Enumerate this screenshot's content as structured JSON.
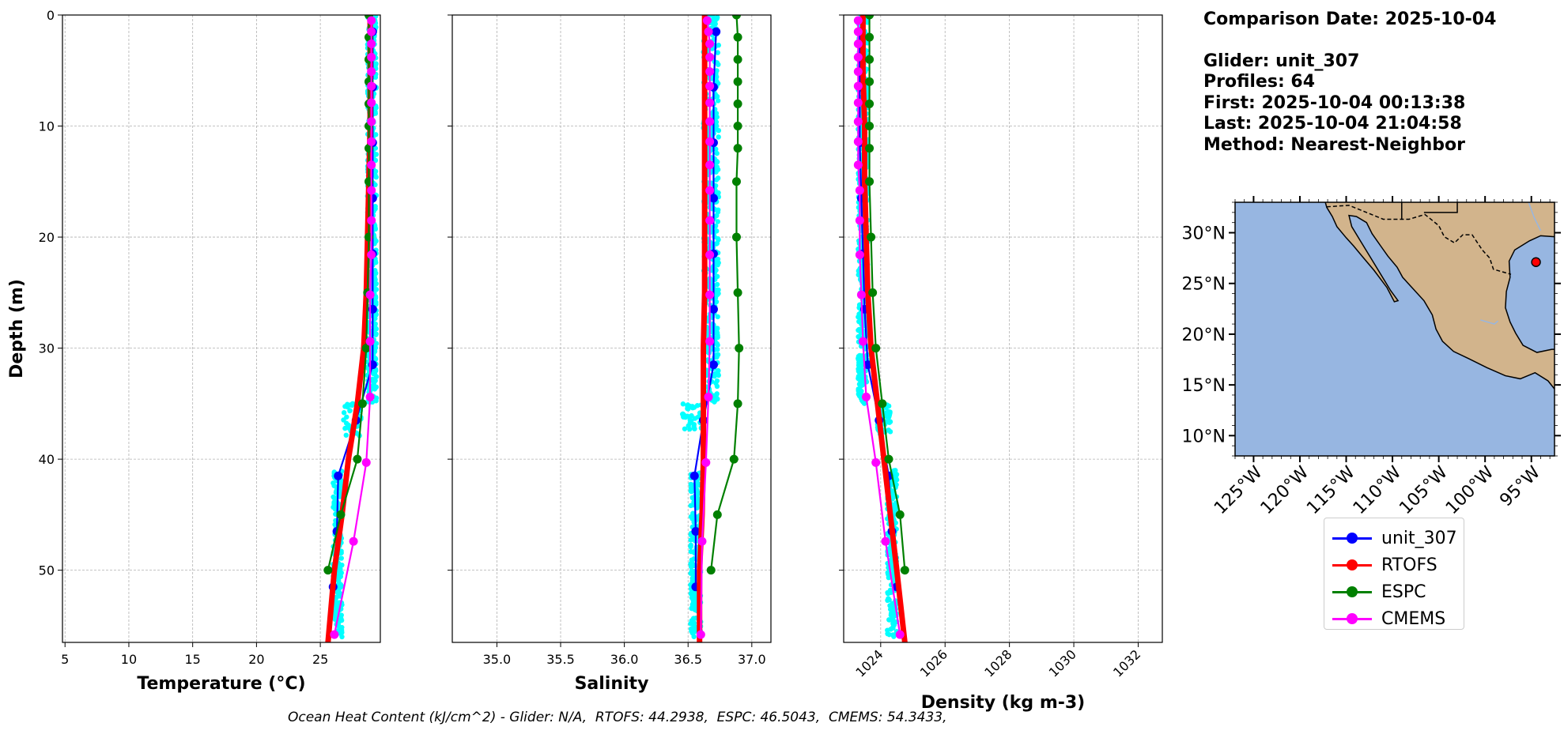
{
  "info": {
    "comparison_date": "Comparison Date: 2025-10-04",
    "glider": "Glider: unit_307",
    "profiles": "Profiles: 64",
    "first": "First: 2025-10-04 00:13:38",
    "last": "Last: 2025-10-04 21:04:58",
    "method": "Method: Nearest-Neighbor"
  },
  "footer": "Ocean Heat Content (kJ/cm^2) - Glider: N/A,  RTOFS: 44.2938,  ESPC: 46.5043,  CMEMS: 54.3433,",
  "legend": [
    {
      "name": "unit_307",
      "color": "#0000ff"
    },
    {
      "name": "RTOFS",
      "color": "#ff0000"
    },
    {
      "name": "ESPC",
      "color": "#008000"
    },
    {
      "name": "CMEMS",
      "color": "#ff00ff"
    }
  ],
  "colors": {
    "glider_scatter": "#00ffff",
    "unit_307": "#0000ff",
    "RTOFS": "#ff0000",
    "ESPC": "#008000",
    "CMEMS": "#ff00ff",
    "ocean": "#97b6e1",
    "land": "#d2b48c",
    "grid": "#b0b0b0"
  },
  "chart_data": [
    {
      "type": "line",
      "xlabel": "Temperature (°C)",
      "ylabel": "Depth (m)",
      "xlim": [
        4.8,
        29.7
      ],
      "ylim": [
        56.5,
        0
      ],
      "xticks": [
        5,
        10,
        15,
        20,
        25
      ],
      "yticks": [
        0,
        10,
        20,
        30,
        40,
        50
      ],
      "grid": true,
      "scatter_x_range": {
        "0-35": [
          28.7,
          29.4
        ],
        "35-38": [
          26.8,
          28.2
        ],
        "41-56": [
          26.0,
          26.7
        ]
      },
      "series": [
        {
          "name": "unit_307",
          "depth": [
            1.5,
            6.5,
            11.5,
            16.5,
            21.5,
            26.5,
            31.5,
            36.5,
            41.5,
            46.5,
            51.5
          ],
          "values": [
            29.1,
            29.1,
            29.1,
            29.1,
            29.1,
            29.1,
            29.1,
            27.8,
            26.4,
            26.3,
            26.0
          ]
        },
        {
          "name": "RTOFS",
          "depth": [
            0,
            2,
            4,
            6,
            8,
            10,
            15,
            20,
            25,
            30,
            35,
            40,
            45,
            50,
            56.5
          ],
          "values": [
            28.9,
            28.9,
            28.9,
            28.9,
            28.9,
            28.9,
            28.8,
            28.7,
            28.6,
            28.4,
            27.9,
            27.2,
            26.7,
            26.1,
            25.6
          ]
        },
        {
          "name": "ESPC",
          "depth": [
            0,
            2,
            4,
            6,
            8,
            10,
            12,
            15,
            20,
            25,
            30,
            35,
            40,
            45,
            50
          ],
          "values": [
            28.8,
            28.8,
            28.8,
            28.8,
            28.8,
            28.8,
            28.8,
            28.8,
            28.8,
            28.7,
            28.6,
            28.3,
            27.9,
            26.6,
            25.6
          ]
        },
        {
          "name": "CMEMS",
          "depth": [
            0.5,
            1.5,
            2.6,
            3.8,
            5.1,
            6.4,
            7.9,
            9.6,
            11.4,
            13.5,
            15.8,
            18.5,
            21.6,
            25.2,
            29.4,
            34.4,
            40.3,
            47.4,
            55.8
          ],
          "values": [
            29.0,
            29.0,
            29.0,
            29.0,
            29.0,
            29.0,
            29.0,
            29.0,
            29.0,
            29.0,
            29.0,
            29.0,
            29.0,
            28.9,
            28.9,
            28.9,
            28.6,
            27.6,
            26.1
          ]
        }
      ]
    },
    {
      "type": "line",
      "xlabel": "Salinity",
      "ylabel": "",
      "xlim": [
        34.65,
        37.15
      ],
      "ylim": [
        56.5,
        0
      ],
      "xticks": [
        35.0,
        35.5,
        36.0,
        36.5,
        37.0
      ],
      "grid": true,
      "scatter_x_range": {
        "0-35": [
          36.62,
          36.74
        ],
        "35-38": [
          36.45,
          36.62
        ],
        "41-56": [
          36.52,
          36.6
        ]
      },
      "series": [
        {
          "name": "unit_307",
          "depth": [
            1.5,
            6.5,
            11.5,
            16.5,
            21.5,
            26.5,
            31.5,
            36.5,
            41.5,
            46.5,
            51.5
          ],
          "values": [
            36.72,
            36.7,
            36.7,
            36.7,
            36.7,
            36.7,
            36.7,
            36.62,
            36.55,
            36.56,
            36.56
          ]
        },
        {
          "name": "RTOFS",
          "depth": [
            0,
            5,
            10,
            15,
            20,
            25,
            30,
            35,
            40,
            45,
            50,
            56.5
          ],
          "values": [
            36.63,
            36.63,
            36.63,
            36.63,
            36.63,
            36.63,
            36.62,
            36.62,
            36.62,
            36.61,
            36.59,
            36.59
          ]
        },
        {
          "name": "ESPC",
          "depth": [
            0,
            2,
            4,
            6,
            8,
            10,
            12,
            15,
            20,
            25,
            30,
            35,
            40,
            45,
            50
          ],
          "values": [
            36.88,
            36.89,
            36.89,
            36.89,
            36.89,
            36.89,
            36.89,
            36.88,
            36.88,
            36.89,
            36.9,
            36.89,
            36.86,
            36.73,
            36.68
          ]
        },
        {
          "name": "CMEMS",
          "depth": [
            0.5,
            1.5,
            2.6,
            3.8,
            5.1,
            6.4,
            7.9,
            9.6,
            11.4,
            13.5,
            15.8,
            18.5,
            21.6,
            25.2,
            29.4,
            34.4,
            40.3,
            47.4,
            55.8
          ],
          "values": [
            36.65,
            36.66,
            36.67,
            36.67,
            36.67,
            36.67,
            36.67,
            36.67,
            36.67,
            36.67,
            36.67,
            36.67,
            36.67,
            36.67,
            36.67,
            36.66,
            36.64,
            36.61,
            36.6
          ]
        }
      ]
    },
    {
      "type": "line",
      "xlabel": "Density (kg m-3)",
      "ylabel": "",
      "xlim": [
        1022.85,
        1032.75
      ],
      "ylim": [
        56.5,
        0
      ],
      "xticks": [
        1024,
        1026,
        1028,
        1030,
        1032
      ],
      "grid": true,
      "scatter_x_range": {
        "0-35": [
          1023.3,
          1023.6
        ],
        "35-38": [
          1023.9,
          1024.3
        ],
        "41-56": [
          1024.2,
          1024.5
        ]
      },
      "series": [
        {
          "name": "unit_307",
          "depth": [
            1.5,
            6.5,
            11.5,
            16.5,
            21.5,
            26.5,
            31.5,
            36.5,
            41.5,
            46.5,
            51.5
          ],
          "values": [
            1023.35,
            1023.35,
            1023.35,
            1023.4,
            1023.45,
            1023.5,
            1023.6,
            1023.95,
            1024.25,
            1024.35,
            1024.5
          ]
        },
        {
          "name": "RTOFS",
          "depth": [
            0,
            5,
            10,
            15,
            20,
            25,
            30,
            35,
            40,
            45,
            50,
            56.5
          ],
          "values": [
            1023.45,
            1023.45,
            1023.5,
            1023.5,
            1023.55,
            1023.6,
            1023.7,
            1023.9,
            1024.1,
            1024.3,
            1024.5,
            1024.75
          ]
        },
        {
          "name": "ESPC",
          "depth": [
            0,
            2,
            4,
            6,
            8,
            10,
            12,
            15,
            20,
            25,
            30,
            35,
            40,
            45,
            50
          ],
          "values": [
            1023.65,
            1023.65,
            1023.65,
            1023.65,
            1023.65,
            1023.65,
            1023.65,
            1023.65,
            1023.7,
            1023.75,
            1023.85,
            1024.05,
            1024.25,
            1024.6,
            1024.75
          ]
        },
        {
          "name": "CMEMS",
          "depth": [
            0.5,
            1.5,
            2.6,
            3.8,
            5.1,
            6.4,
            7.9,
            9.6,
            11.4,
            13.5,
            15.8,
            18.5,
            21.6,
            25.2,
            29.4,
            34.4,
            40.3,
            47.4,
            55.8
          ],
          "values": [
            1023.3,
            1023.3,
            1023.3,
            1023.3,
            1023.3,
            1023.3,
            1023.3,
            1023.3,
            1023.3,
            1023.3,
            1023.35,
            1023.35,
            1023.35,
            1023.4,
            1023.45,
            1023.55,
            1023.85,
            1024.15,
            1024.6
          ]
        }
      ]
    }
  ],
  "map": {
    "lon_range": [
      -127,
      -92.5
    ],
    "lat_range": [
      8,
      33
    ],
    "lon_ticks": [
      -125,
      -120,
      -115,
      -110,
      -105,
      -100,
      -95
    ],
    "lon_tick_labels": [
      "125°W",
      "120°W",
      "115°W",
      "110°W",
      "105°W",
      "100°W",
      "95°W"
    ],
    "lat_ticks": [
      10,
      15,
      20,
      25,
      30
    ],
    "lat_tick_labels": [
      "10°N",
      "15°N",
      "20°N",
      "25°N",
      "30°N"
    ],
    "glider_position": {
      "lon": -94.5,
      "lat": 27.1
    }
  }
}
